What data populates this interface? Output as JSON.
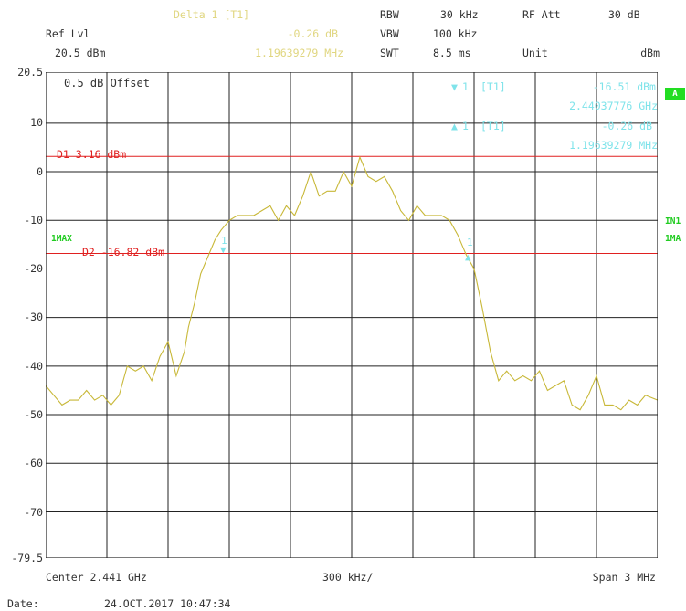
{
  "header": {
    "marker_title": "Delta 1 [T1]",
    "ref_lvl_label": "Ref Lvl",
    "ref_lvl_value": "20.5 dBm",
    "delta_level": "-0.26 dB",
    "delta_freq": "1.19639279 MHz",
    "rbw_label": "RBW",
    "rbw_value": "30 kHz",
    "rf_att_label": "RF Att",
    "rf_att_value": "30 dB",
    "vbw_label": "VBW",
    "vbw_value": "100 kHz",
    "swt_label": "SWT",
    "swt_value": "8.5 ms",
    "unit_label": "Unit",
    "unit_value": "dBm"
  },
  "side": {
    "a_badge": "A",
    "in1": "IN1",
    "mode_right": "1MA",
    "mode_left": "1MAX"
  },
  "footer": {
    "center": "Center 2.441 GHz",
    "div": "300 kHz/",
    "span": "Span 3 MHz",
    "date_label": "Date:",
    "date_value": "24.OCT.2017  10:47:34"
  },
  "chart_data": {
    "type": "line",
    "offset_note": "0.5 dB Offset",
    "ylim": [
      -79.5,
      20.5
    ],
    "yticks": [
      "20.5",
      "10",
      "0",
      "-10",
      "-20",
      "-30",
      "-40",
      "-50",
      "-60",
      "-70",
      "-79.5"
    ],
    "xlim_mhz": [
      2439.5,
      2442.5
    ],
    "lines": [
      {
        "label": "D1  3.16 dBm",
        "value": 3.16
      },
      {
        "label": "D2  -16.82 dBm",
        "value": -16.82
      }
    ],
    "markers": [
      {
        "id": "marker-1",
        "label": "1",
        "tag": "[T1]",
        "level": "-16.51 dBm",
        "freq": "2.44037776 GHz",
        "x_mhz": 2440.38,
        "y_dbm": -16.51
      },
      {
        "id": "marker-delta",
        "label": "1",
        "tag": "[T1]",
        "level": "-0.26 dB",
        "freq": "1.19639279 MHz",
        "x_mhz": 2441.58,
        "y_dbm": -16.77
      }
    ],
    "series": [
      {
        "color": "#c8b838",
        "x": [
          2439.5,
          2439.54,
          2439.58,
          2439.62,
          2439.66,
          2439.7,
          2439.74,
          2439.78,
          2439.82,
          2439.86,
          2439.9,
          2439.94,
          2439.98,
          2440.02,
          2440.06,
          2440.1,
          2440.14,
          2440.18,
          2440.2,
          2440.23,
          2440.26,
          2440.3,
          2440.33,
          2440.36,
          2440.4,
          2440.44,
          2440.48,
          2440.52,
          2440.56,
          2440.6,
          2440.64,
          2440.68,
          2440.72,
          2440.76,
          2440.8,
          2440.84,
          2440.88,
          2440.92,
          2440.96,
          2441.0,
          2441.04,
          2441.08,
          2441.12,
          2441.16,
          2441.2,
          2441.24,
          2441.28,
          2441.32,
          2441.36,
          2441.4,
          2441.44,
          2441.48,
          2441.52,
          2441.56,
          2441.6,
          2441.64,
          2441.68,
          2441.72,
          2441.76,
          2441.8,
          2441.84,
          2441.88,
          2441.92,
          2441.96,
          2442.0,
          2442.04,
          2442.08,
          2442.12,
          2442.16,
          2442.2,
          2442.24,
          2442.28,
          2442.32,
          2442.36,
          2442.4,
          2442.44,
          2442.5
        ],
        "y": [
          -44,
          -46,
          -48,
          -47,
          -47,
          -45,
          -47,
          -46,
          -48,
          -46,
          -40,
          -41,
          -40,
          -43,
          -38,
          -35,
          -42,
          -37,
          -32,
          -27,
          -21,
          -17,
          -14,
          -12,
          -10,
          -9,
          -9,
          -9,
          -8,
          -7,
          -10,
          -7,
          -9,
          -5,
          0,
          -5,
          -4,
          -4,
          0,
          -3,
          3,
          -1,
          -2,
          -1,
          -4,
          -8,
          -10,
          -7,
          -9,
          -9,
          -9,
          -10,
          -13,
          -17,
          -20,
          -28,
          -37,
          -43,
          -41,
          -43,
          -42,
          -43,
          -41,
          -45,
          -44,
          -43,
          -48,
          -49,
          -46,
          -42,
          -48,
          -48,
          -49,
          -47,
          -48,
          -46,
          -47
        ]
      }
    ]
  }
}
